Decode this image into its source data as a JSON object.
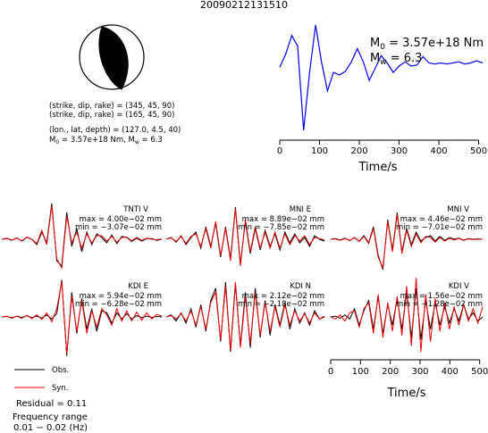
{
  "title": "20090212131510",
  "focal_mechanism": {
    "plane1": "(strike, dip, rake) = (345, 45, 90)",
    "plane2": "(strike, dip, rake) = (165, 45, 90)",
    "location": "(lon., lat, depth) = (127.0, 4.5, 40)",
    "moment_line": "M0 = 3.57e+18 Nm, Mw = 6.3"
  },
  "stf": {
    "m0_text": "M0 = 3.57e+18 Nm",
    "mw_text": "Mw = 6.3",
    "xlabel": "Time/s",
    "color": "#0000ee"
  },
  "legend": {
    "obs_label": "Obs.",
    "syn_label": "Syn.",
    "obs_color": "#000000",
    "syn_color": "#ee0000"
  },
  "residual": "Residual = 0.11",
  "frequency": {
    "label": "Frequency range",
    "value": "0.01 − 0.02 (Hz)"
  },
  "waveform_xlabel": "Time/s",
  "chart_data": [
    {
      "type": "line",
      "name": "source-time-function",
      "xlabel": "Time/s",
      "xlim": [
        0,
        510
      ],
      "xticks": [
        0,
        100,
        200,
        300,
        400,
        500
      ],
      "x": [
        0,
        15,
        30,
        45,
        60,
        75,
        90,
        105,
        120,
        135,
        150,
        165,
        180,
        195,
        210,
        225,
        240,
        255,
        270,
        285,
        300,
        315,
        330,
        345,
        360,
        375,
        390,
        405,
        420,
        435,
        450,
        465,
        480,
        495,
        510
      ],
      "values": [
        0.2,
        0.45,
        0.8,
        0.6,
        -1.0,
        0.1,
        1.0,
        0.3,
        -0.25,
        0.1,
        0.05,
        0.12,
        0.3,
        0.55,
        0.3,
        -0.05,
        0.18,
        0.42,
        0.28,
        0.1,
        0.22,
        0.3,
        0.22,
        0.24,
        0.4,
        0.28,
        0.26,
        0.28,
        0.26,
        0.28,
        0.3,
        0.26,
        0.28,
        0.32,
        0.28
      ]
    },
    {
      "type": "line",
      "name": "waveform-fits",
      "xlabel": "Time/s",
      "xlim": [
        0,
        510
      ],
      "xticks": [
        0,
        100,
        200,
        300,
        400,
        500
      ],
      "stations": [
        {
          "name": "TNTI V",
          "max": "max = 4.00e−02 mm",
          "min": "min = −3.07e−02 mm",
          "obs": [
            0.0,
            0.02,
            -0.03,
            0.04,
            -0.05,
            0.05,
            0.0,
            -0.15,
            0.2,
            -0.1,
            1.0,
            -0.6,
            -0.75,
            0.75,
            -0.2,
            0.3,
            -0.35,
            0.2,
            -0.15,
            0.15,
            0.05,
            -0.1,
            0.12,
            -0.12,
            0.08,
            0.05,
            -0.06,
            0.03,
            -0.05,
            0.02,
            0.02,
            -0.03,
            0.0
          ],
          "syn": [
            0.0,
            0.03,
            -0.02,
            0.03,
            -0.04,
            0.06,
            0.0,
            -0.12,
            0.25,
            -0.15,
            0.95,
            -0.55,
            -0.8,
            0.65,
            -0.1,
            0.2,
            -0.25,
            0.15,
            -0.1,
            0.1,
            0.1,
            -0.05,
            0.08,
            -0.08,
            0.05,
            0.06,
            -0.04,
            0.05,
            -0.03,
            0.03,
            0.0,
            -0.02,
            0.01
          ]
        },
        {
          "name": "MNI E",
          "max": "max = 8.89e−02 mm",
          "min": "min = −7.85e−02 mm",
          "obs": [
            0.0,
            0.05,
            -0.08,
            0.1,
            -0.15,
            0.05,
            0.2,
            -0.25,
            0.35,
            -0.2,
            0.45,
            -0.5,
            0.35,
            -0.55,
            0.9,
            -0.7,
            0.5,
            -0.4,
            0.3,
            -0.3,
            0.25,
            -0.2,
            0.15,
            -0.3,
            0.2,
            -0.1,
            0.15,
            -0.1,
            0.05,
            -0.2,
            0.1,
            0.0,
            -0.05
          ],
          "syn": [
            0.0,
            0.04,
            -0.06,
            0.08,
            -0.12,
            0.08,
            0.15,
            -0.2,
            0.3,
            -0.25,
            0.5,
            -0.45,
            0.3,
            -0.6,
            0.85,
            -0.75,
            0.55,
            -0.35,
            0.35,
            -0.25,
            0.2,
            -0.25,
            0.2,
            -0.25,
            0.15,
            -0.15,
            0.1,
            -0.05,
            0.1,
            -0.15,
            0.05,
            0.02,
            -0.02
          ]
        },
        {
          "name": "MNI V",
          "max": "max = 4.46e−02 mm",
          "min": "min = −7.01e−02 mm",
          "obs": [
            0.0,
            0.02,
            -0.02,
            0.03,
            -0.04,
            0.05,
            -0.05,
            0.1,
            -0.1,
            0.35,
            -0.45,
            -0.85,
            0.55,
            -0.3,
            0.75,
            -0.35,
            0.3,
            -0.15,
            0.2,
            -0.05,
            0.05,
            0.1,
            -0.05,
            0.08,
            -0.03,
            0.05,
            0.0,
            0.03,
            -0.02,
            0.02,
            0.0,
            0.01,
            0.0
          ],
          "syn": [
            0.0,
            0.01,
            -0.03,
            0.02,
            -0.03,
            0.04,
            -0.06,
            0.08,
            -0.12,
            0.3,
            -0.5,
            -0.8,
            0.5,
            -0.35,
            0.7,
            -0.4,
            0.25,
            -0.2,
            0.15,
            -0.1,
            0.08,
            0.05,
            -0.08,
            0.05,
            -0.05,
            0.03,
            -0.02,
            0.02,
            -0.03,
            0.01,
            -0.01,
            0.0,
            0.0
          ]
        },
        {
          "name": "KDI E",
          "max": "max = 5.94e−02 mm",
          "min": "min = −6.28e−02 mm",
          "obs": [
            0.0,
            0.01,
            -0.02,
            0.02,
            -0.01,
            0.03,
            -0.02,
            0.02,
            -0.03,
            0.05,
            -0.05,
            0.08,
            0.9,
            -0.95,
            0.6,
            -0.4,
            0.45,
            -0.3,
            0.2,
            -0.35,
            0.15,
            0.1,
            -0.15,
            0.1,
            -0.05,
            0.08,
            -0.05,
            0.03,
            -0.02,
            0.02,
            -0.01,
            0.01,
            0.0
          ],
          "syn": [
            0.0,
            0.02,
            -0.03,
            0.02,
            -0.03,
            0.04,
            -0.04,
            0.05,
            -0.06,
            0.1,
            -0.12,
            0.2,
            0.85,
            -0.9,
            0.5,
            -0.35,
            0.4,
            -0.4,
            0.15,
            -0.25,
            0.2,
            0.05,
            -0.2,
            0.2,
            -0.1,
            0.15,
            -0.1,
            0.12,
            -0.08,
            0.1,
            -0.05,
            0.06,
            0.02
          ]
        },
        {
          "name": "KDI N",
          "max": "max = 2.12e−02 mm",
          "min": "min = −2.18e−02 mm",
          "obs": [
            0.0,
            0.05,
            -0.1,
            0.1,
            -0.15,
            0.2,
            -0.25,
            0.3,
            -0.35,
            0.4,
            0.7,
            -0.6,
            0.85,
            -0.85,
            0.8,
            -0.7,
            0.6,
            -0.75,
            0.7,
            -0.5,
            0.4,
            -0.45,
            0.3,
            -0.2,
            0.35,
            -0.3,
            0.2,
            -0.15,
            0.1,
            -0.2,
            0.15,
            -0.05,
            0.0
          ],
          "syn": [
            0.0,
            0.03,
            -0.05,
            0.08,
            -0.1,
            0.15,
            -0.2,
            0.25,
            -0.3,
            0.35,
            0.6,
            -0.55,
            0.75,
            -0.8,
            0.85,
            -0.75,
            0.5,
            -0.65,
            0.6,
            -0.45,
            0.35,
            -0.35,
            0.25,
            -0.25,
            0.3,
            -0.2,
            0.15,
            -0.1,
            0.08,
            -0.15,
            0.1,
            -0.05,
            0.02
          ]
        },
        {
          "name": "KDI V",
          "max": "max = 1.56e−02 mm",
          "min": "min = −1.28e−02 mm",
          "obs": [
            0.0,
            0.02,
            -0.03,
            0.05,
            -0.05,
            0.2,
            -0.2,
            0.15,
            0.4,
            -0.3,
            0.5,
            -0.4,
            0.3,
            -0.2,
            0.45,
            -0.3,
            0.6,
            -0.5,
            0.7,
            -0.55,
            0.4,
            -0.3,
            0.35,
            -0.2,
            0.25,
            -0.15,
            0.2,
            -0.1,
            0.3,
            -0.05,
            0.1,
            -0.1,
            0.0
          ],
          "syn": [
            0.0,
            -0.05,
            0.05,
            -0.1,
            0.1,
            0.15,
            -0.25,
            0.2,
            0.35,
            -0.4,
            0.55,
            -0.5,
            0.35,
            -0.35,
            0.5,
            -0.45,
            0.75,
            -0.7,
            0.95,
            -0.85,
            0.55,
            -0.6,
            0.45,
            -0.35,
            0.35,
            -0.3,
            0.25,
            -0.2,
            0.3,
            -0.1,
            0.2,
            -0.15,
            0.25
          ]
        }
      ]
    }
  ]
}
